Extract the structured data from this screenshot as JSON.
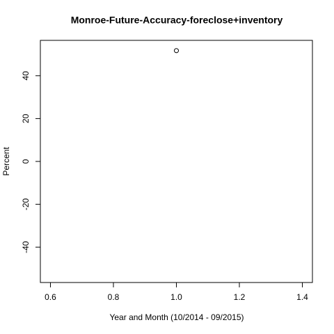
{
  "chart_data": {
    "type": "scatter",
    "title": "Monroe-Future-Accuracy-foreclose+inventory",
    "xlabel": "Year and Month (10/2014 - 09/2015)",
    "ylabel": "Percent",
    "x": [
      1.0
    ],
    "values": [
      51.7
    ],
    "color": "#000000",
    "xlim": [
      0.568,
      1.432
    ],
    "xticks": [
      0.6,
      0.8,
      {
        "value": 1.0,
        "label": "1.0"
      },
      1.2,
      1.4
    ],
    "ylim": [
      -56.5,
      56.5
    ],
    "yticks": [
      -40,
      -20,
      0,
      20,
      40
    ]
  }
}
